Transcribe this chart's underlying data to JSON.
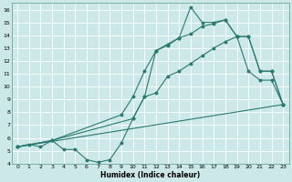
{
  "xlabel": "Humidex (Indice chaleur)",
  "bg_color": "#cce8e8",
  "grid_color": "#ffffff",
  "line_color": "#2a7a70",
  "xlim": [
    -0.5,
    23.5
  ],
  "ylim": [
    4,
    16.5
  ],
  "xticks": [
    0,
    1,
    2,
    3,
    4,
    5,
    6,
    7,
    8,
    9,
    10,
    11,
    12,
    13,
    14,
    15,
    16,
    17,
    18,
    19,
    20,
    21,
    22,
    23
  ],
  "yticks": [
    4,
    5,
    6,
    7,
    8,
    9,
    10,
    11,
    12,
    13,
    14,
    15,
    16
  ],
  "line1_x": [
    0,
    1,
    2,
    3,
    4,
    5,
    6,
    7,
    8,
    9,
    10,
    11,
    12,
    13,
    14,
    15,
    16,
    17,
    18,
    19,
    20,
    21,
    22,
    23
  ],
  "line1_y": [
    5.3,
    5.5,
    5.3,
    5.8,
    5.1,
    5.1,
    4.3,
    4.1,
    4.3,
    5.6,
    7.5,
    9.2,
    9.5,
    10.8,
    11.2,
    11.8,
    12.4,
    13.0,
    13.5,
    13.9,
    13.9,
    11.2,
    11.2,
    8.6
  ],
  "line2_x": [
    0,
    3,
    10,
    11,
    12,
    13,
    14,
    15,
    16,
    17,
    18,
    19,
    20,
    21,
    22,
    23
  ],
  "line2_y": [
    5.3,
    5.8,
    7.5,
    9.2,
    12.8,
    13.3,
    13.8,
    16.2,
    15.0,
    15.0,
    15.2,
    13.9,
    11.2,
    10.5,
    10.5,
    8.6
  ],
  "line3_x": [
    0,
    23
  ],
  "line3_y": [
    5.3,
    8.6
  ],
  "line4_x": [
    0,
    3,
    9,
    10,
    11,
    12,
    13,
    14,
    15,
    16,
    17,
    18,
    19,
    20,
    21,
    22,
    23
  ],
  "line4_y": [
    5.3,
    5.8,
    7.8,
    9.2,
    11.2,
    12.8,
    13.2,
    13.8,
    14.1,
    14.7,
    14.9,
    15.2,
    13.9,
    13.9,
    11.2,
    11.2,
    8.6
  ]
}
